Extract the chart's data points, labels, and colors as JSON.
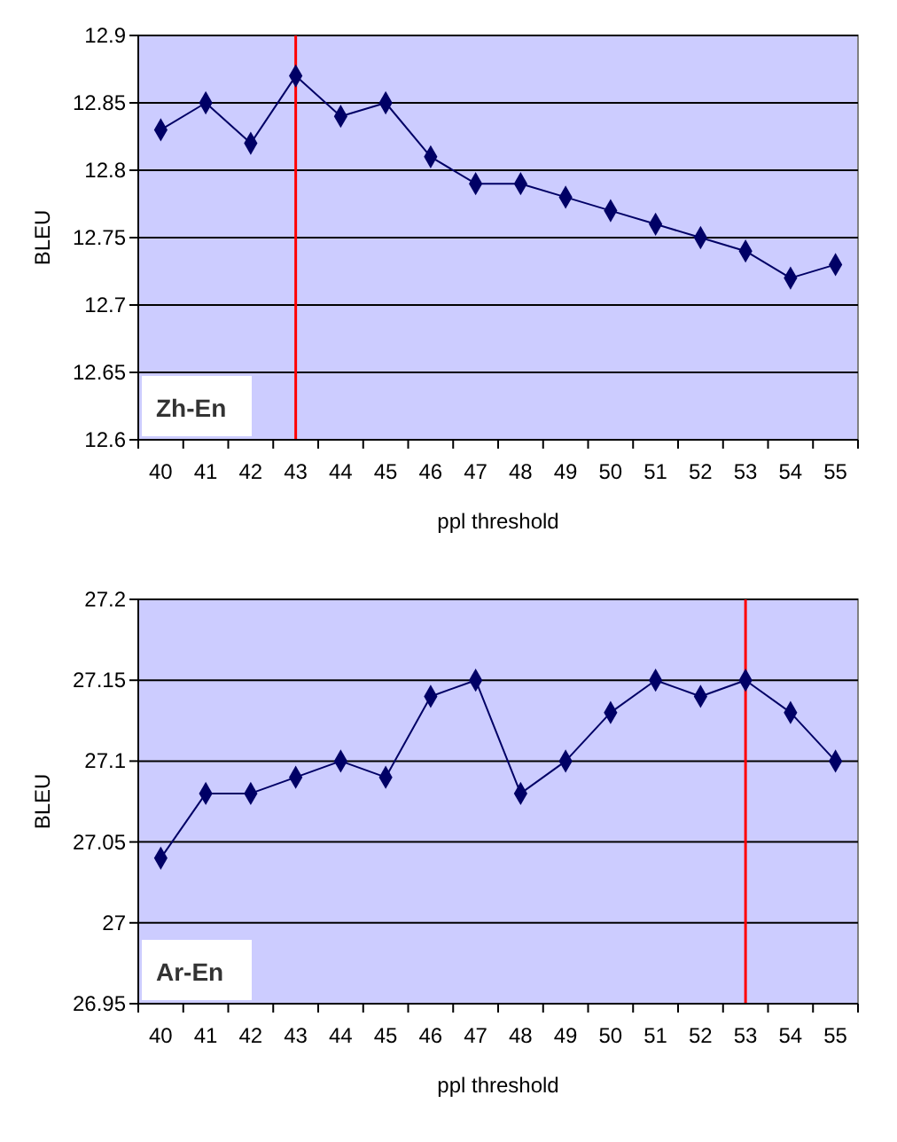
{
  "chart_data": [
    {
      "type": "line",
      "ylabel": "BLEU",
      "xlabel": "ppl threshold",
      "categories": [
        "40",
        "41",
        "42",
        "43",
        "44",
        "45",
        "46",
        "47",
        "48",
        "49",
        "50",
        "51",
        "52",
        "53",
        "54",
        "55"
      ],
      "series": [
        {
          "color": "#000066",
          "values": [
            12.83,
            12.85,
            12.82,
            12.87,
            12.84,
            12.85,
            12.81,
            12.79,
            12.79,
            12.78,
            12.77,
            12.76,
            12.75,
            12.74,
            12.72,
            12.73
          ]
        }
      ],
      "ylim": [
        12.6,
        12.9
      ],
      "yticks": [
        12.6,
        12.65,
        12.7,
        12.75,
        12.8,
        12.85,
        12.9
      ],
      "grid": "y",
      "marker": "diamond",
      "ref_lines": [
        {
          "axis": "x",
          "value": "43",
          "color": "#ff0000"
        }
      ],
      "annotations": [
        "Zh-En"
      ]
    },
    {
      "type": "line",
      "ylabel": "BLEU",
      "xlabel": "ppl threshold",
      "categories": [
        "40",
        "41",
        "42",
        "43",
        "44",
        "45",
        "46",
        "47",
        "48",
        "49",
        "50",
        "51",
        "52",
        "53",
        "54",
        "55"
      ],
      "series": [
        {
          "color": "#000066",
          "values": [
            27.04,
            27.08,
            27.08,
            27.09,
            27.1,
            27.09,
            27.14,
            27.15,
            27.08,
            27.1,
            27.13,
            27.15,
            27.14,
            27.15,
            27.13,
            27.1
          ]
        }
      ],
      "ylim": [
        26.95,
        27.2
      ],
      "yticks": [
        26.95,
        27,
        27.05,
        27.1,
        27.15,
        27.2
      ],
      "grid": "y",
      "marker": "diamond",
      "ref_lines": [
        {
          "axis": "x",
          "value": "53",
          "color": "#ff0000"
        }
      ],
      "annotations": [
        "Ar-En"
      ]
    }
  ]
}
